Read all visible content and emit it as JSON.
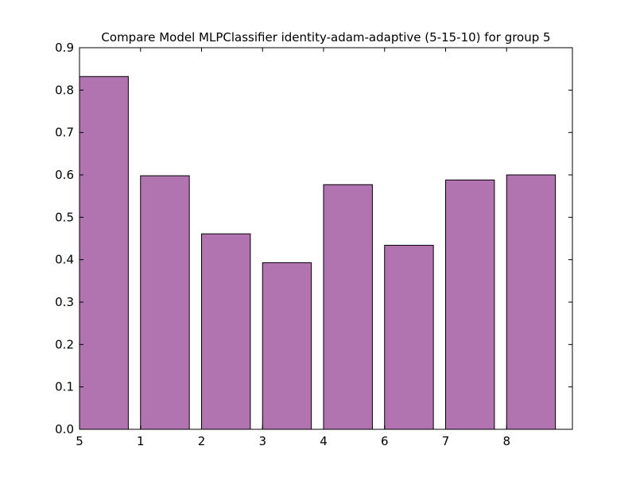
{
  "colors": {
    "bar_fill": "#b274b0",
    "bar_edge": "#000000",
    "axis": "#000000",
    "background": "#ffffff"
  },
  "chart_data": {
    "type": "bar",
    "title": "Compare Model MLPClassifier identity-adam-adaptive (5-15-10) for group 5",
    "xlabel": "",
    "ylabel": "",
    "categories": [
      "5",
      "1",
      "2",
      "3",
      "4",
      "6",
      "7",
      "8"
    ],
    "values": [
      0.832,
      0.598,
      0.461,
      0.393,
      0.577,
      0.434,
      0.588,
      0.6
    ],
    "ylim": [
      0.0,
      0.9
    ],
    "yticks": [
      "0.0",
      "0.1",
      "0.2",
      "0.3",
      "0.4",
      "0.5",
      "0.6",
      "0.7",
      "0.8",
      "0.9"
    ],
    "grid": false,
    "legend": "none"
  }
}
